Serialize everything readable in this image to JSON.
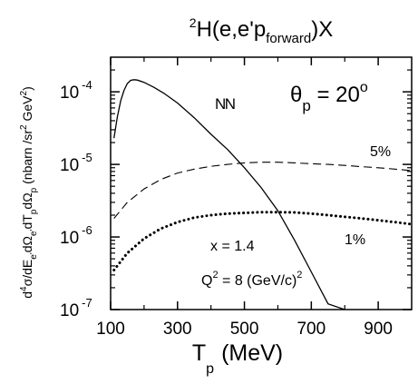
{
  "chart_data": {
    "type": "line",
    "title": {
      "pre": "2",
      "main": "H(e,e'p",
      "sub": "forward",
      "post": ")X"
    },
    "xlabel": {
      "main": "T",
      "sub": "p",
      "unit": "(MeV)"
    },
    "ylabel": {
      "parts": [
        {
          "t": "d",
          "s": ""
        },
        {
          "t": "4",
          "s": "sup"
        },
        {
          "t": "σ/dE",
          "s": ""
        },
        {
          "t": "e'",
          "s": "sub"
        },
        {
          "t": "dΩ",
          "s": ""
        },
        {
          "t": "e'",
          "s": "sub"
        },
        {
          "t": "dT",
          "s": ""
        },
        {
          "t": "p",
          "s": "sub"
        },
        {
          "t": "dΩ",
          "s": ""
        },
        {
          "t": "p",
          "s": "sub"
        },
        {
          "t": " (nbarn /sr",
          "s": ""
        },
        {
          "t": "2",
          "s": "sup"
        },
        {
          "t": " GeV",
          "s": ""
        },
        {
          "t": "2",
          "s": "sup"
        },
        {
          "t": ")",
          "s": ""
        }
      ]
    },
    "x_ticks": [
      100,
      300,
      500,
      700,
      900
    ],
    "x_tick_labels": [
      "100",
      "300",
      "500",
      "700",
      "900"
    ],
    "y_ticks": [
      {
        "value": 0.0001,
        "base": "10",
        "exp": "-4"
      },
      {
        "value": 1e-05,
        "base": "10",
        "exp": "-5"
      },
      {
        "value": 1e-06,
        "base": "10",
        "exp": "-6"
      },
      {
        "value": 1e-07,
        "base": "10",
        "exp": "-7"
      }
    ],
    "xlim": [
      100,
      1000
    ],
    "ylim": [
      1e-07,
      0.0003
    ],
    "yscale": "log",
    "grid": false,
    "annotations": {
      "theta": {
        "sym": "θ",
        "sub": "p",
        "eq": " = 20",
        "sup": "o"
      },
      "nn": "NN",
      "pct5": "5%",
      "pct1": "1%",
      "x": "x = 1.4",
      "q2": {
        "pre": "Q",
        "sup1": "2",
        "mid": " = 8  (GeV/c)",
        "sup2": "2"
      }
    },
    "series": [
      {
        "style": "solid",
        "x": [
          110,
          120,
          130,
          140,
          150,
          160,
          170,
          180,
          200,
          230,
          260,
          300,
          350,
          400,
          450,
          500,
          550,
          600,
          650,
          700,
          750,
          800
        ],
        "y": [
          2.3e-05,
          4.5e-05,
          7.5e-05,
          0.000105,
          0.00013,
          0.000144,
          0.000147,
          0.000145,
          0.000135,
          0.000115,
          9.5e-05,
          7e-05,
          4.4e-05,
          2.6e-05,
          1.6e-05,
          9e-06,
          4.8e-06,
          2.3e-06,
          9e-07,
          3.3e-07,
          1.2e-07,
          1e-07
        ]
      },
      {
        "style": "dashed",
        "x": [
          110,
          150,
          200,
          250,
          300,
          350,
          400,
          450,
          500,
          550,
          600,
          650,
          700,
          750,
          800,
          850,
          900,
          950,
          1000
        ],
        "y": [
          1.8e-06,
          3e-06,
          4.6e-06,
          6.2e-06,
          7.6e-06,
          8.6e-06,
          9.4e-06,
          1e-05,
          1.05e-05,
          1.07e-05,
          1.07e-05,
          1.05e-05,
          1.02e-05,
          1e-05,
          9.7e-06,
          9.3e-06,
          9e-06,
          8.6e-06,
          8.2e-06
        ]
      },
      {
        "style": "dotted",
        "x": [
          110,
          150,
          200,
          250,
          300,
          350,
          400,
          450,
          500,
          550,
          600,
          650,
          700,
          750,
          800,
          850,
          900,
          950,
          1000
        ],
        "y": [
          3.5e-07,
          6e-07,
          9.5e-07,
          1.3e-06,
          1.6e-06,
          1.85e-06,
          2e-06,
          2.1e-06,
          2.15e-06,
          2.2e-06,
          2.2e-06,
          2.18e-06,
          2.1e-06,
          2e-06,
          1.9e-06,
          1.8e-06,
          1.7e-06,
          1.6e-06,
          1.5e-06
        ]
      }
    ]
  }
}
